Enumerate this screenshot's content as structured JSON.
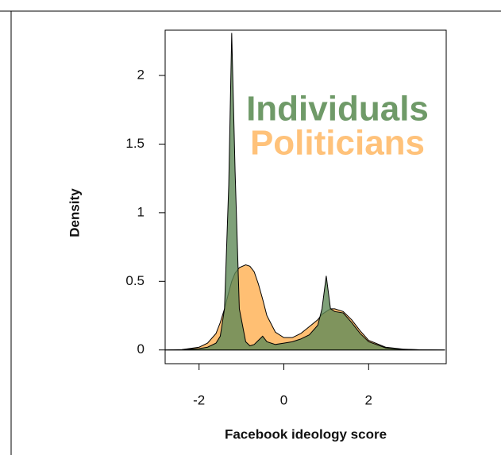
{
  "chart_data": {
    "type": "area",
    "x_label": "Facebook ideology score",
    "y_label": "Density",
    "x": [
      -2.8,
      -2.4,
      -2.0,
      -1.8,
      -1.6,
      -1.5,
      -1.4,
      -1.3,
      -1.23,
      -1.15,
      -1.05,
      -0.9,
      -0.8,
      -0.7,
      -0.6,
      -0.5,
      -0.4,
      -0.2,
      0,
      0.2,
      0.4,
      0.6,
      0.8,
      0.9,
      1.0,
      1.1,
      1.2,
      1.4,
      1.6,
      1.8,
      2.0,
      2.4,
      2.8,
      3.2,
      3.8
    ],
    "series": [
      {
        "name": "Individuals",
        "color": "#5f8a57",
        "legend_color": "#6f9a68",
        "values": [
          0,
          0.002,
          0.01,
          0.02,
          0.05,
          0.1,
          0.3,
          1.2,
          2.31,
          1.3,
          0.3,
          0.06,
          0.03,
          0.04,
          0.07,
          0.1,
          0.06,
          0.04,
          0.05,
          0.06,
          0.08,
          0.11,
          0.18,
          0.3,
          0.54,
          0.3,
          0.28,
          0.27,
          0.2,
          0.12,
          0.06,
          0.015,
          0.004,
          0.001,
          0
        ]
      },
      {
        "name": "Politicians",
        "color": "#ffb45a",
        "legend_color": "#ffc27a",
        "values": [
          0,
          0.003,
          0.02,
          0.05,
          0.12,
          0.2,
          0.3,
          0.42,
          0.5,
          0.56,
          0.6,
          0.62,
          0.61,
          0.57,
          0.48,
          0.37,
          0.25,
          0.13,
          0.09,
          0.09,
          0.12,
          0.17,
          0.22,
          0.26,
          0.28,
          0.3,
          0.3,
          0.28,
          0.22,
          0.14,
          0.07,
          0.02,
          0.006,
          0.001,
          0
        ]
      }
    ],
    "xlim": [
      -2.8,
      3.83
    ],
    "ylim": [
      -0.1,
      2.33
    ],
    "xticks": [
      -2,
      0,
      2
    ],
    "yticks": [
      0,
      0.5,
      1,
      1.5,
      2
    ]
  }
}
